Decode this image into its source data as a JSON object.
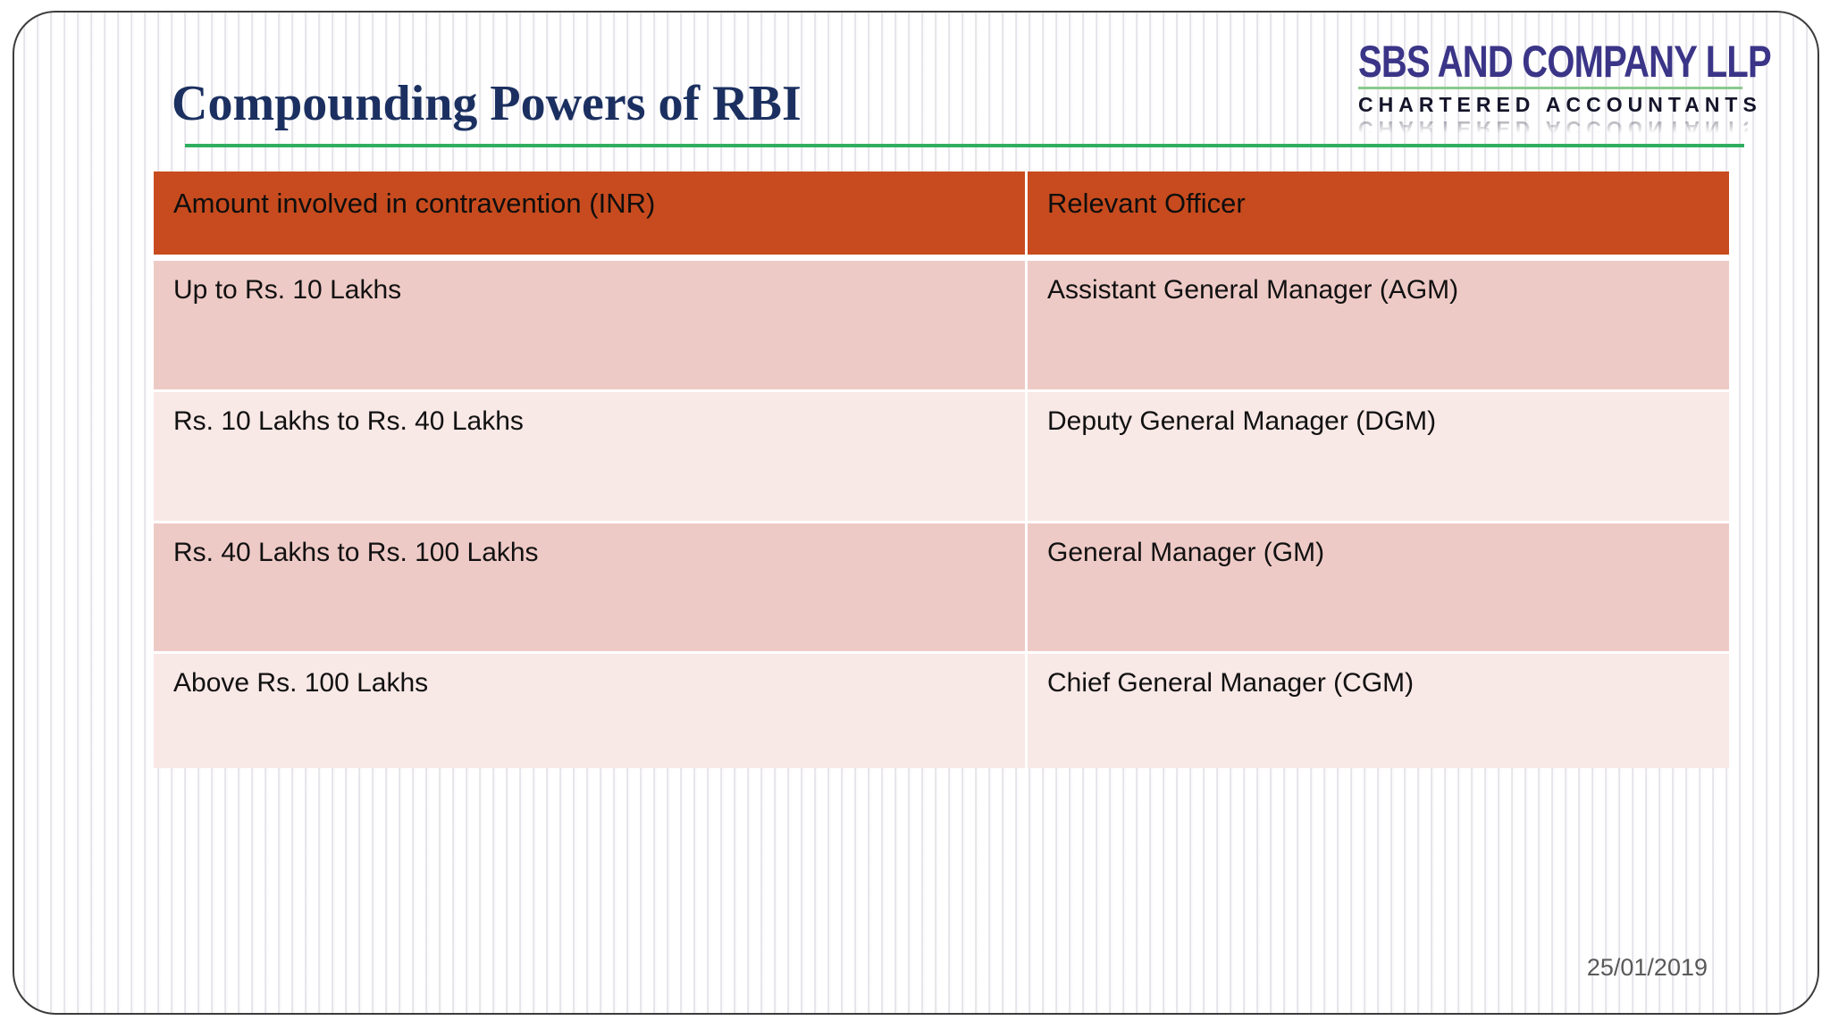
{
  "slide": {
    "title": "Compounding Powers of RBI",
    "date": "25/01/2019"
  },
  "logo": {
    "company": "SBS AND COMPANY LLP",
    "tagline": "CHARTERED ACCOUNTANTS",
    "reflection": "CHARTERED ACCOUNTANTS"
  },
  "table": {
    "headers": [
      "Amount involved in contravention (INR)",
      "Relevant Officer"
    ],
    "rows": [
      {
        "amount": "Up to Rs. 10 Lakhs",
        "officer": "Assistant General Manager (AGM)"
      },
      {
        "amount": "Rs. 10 Lakhs to Rs. 40 Lakhs",
        "officer": "Deputy General Manager (DGM)"
      },
      {
        "amount": "Rs. 40 Lakhs to Rs. 100 Lakhs",
        "officer": "General Manager (GM)"
      },
      {
        "amount": "Above Rs. 100 Lakhs",
        "officer": "Chief General Manager (CGM)"
      }
    ]
  },
  "colors": {
    "table_header_bg": "#C74B1E",
    "row_dark": "#EECAC6",
    "row_light": "#F8E8E6",
    "title_text": "#1B3060",
    "logo_purple": "#3B3588",
    "title_underline_green": "#2FAE5E",
    "logo_line_green": "#8BC98C",
    "date_gray": "#595959",
    "frame_border": "#3C3C3C"
  }
}
